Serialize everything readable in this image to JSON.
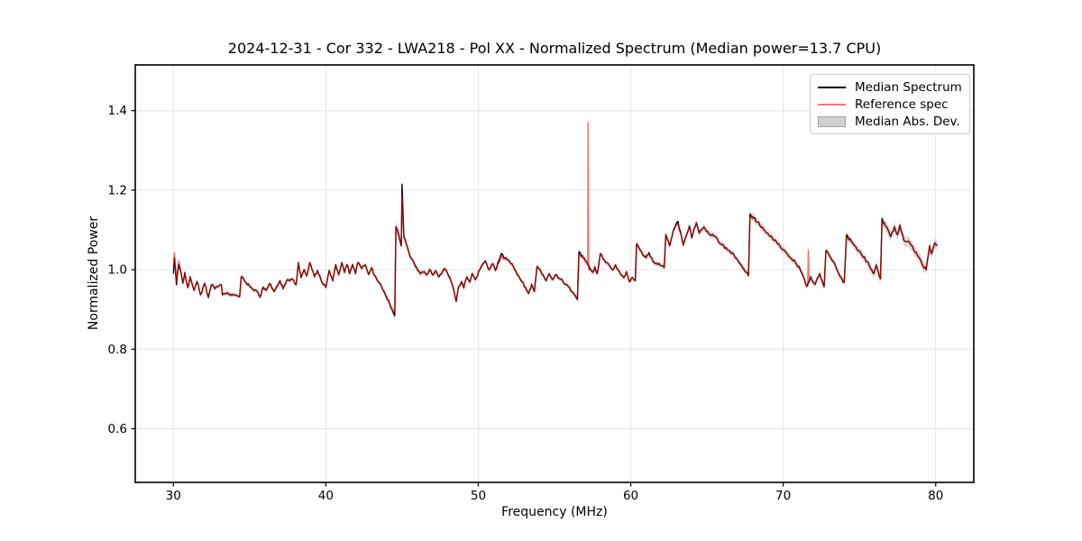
{
  "chart_data": {
    "type": "line",
    "title": "2024-12-31 - Cor 332 - LWA218 - Pol XX - Normalized Spectrum (Median power=13.7 CPU)",
    "xlabel": "Frequency (MHz)",
    "ylabel": "Normalized Power",
    "xlim": [
      27.5,
      82.5
    ],
    "ylim": [
      0.465,
      1.515
    ],
    "xticks": [
      30,
      40,
      50,
      60,
      70,
      80
    ],
    "yticks": [
      0.6,
      0.8,
      1.0,
      1.2,
      1.4
    ],
    "grid": true,
    "grid_color": "#e6e6e6",
    "legend_position": "upper right",
    "noise_amplitude": 0.0035,
    "series": [
      {
        "name": "Median Spectrum",
        "kind": "line",
        "color": "#000000",
        "opacity": 1.0,
        "points": [
          [
            30.0,
            0.99
          ],
          [
            30.07,
            1.03
          ],
          [
            30.2,
            0.962
          ],
          [
            30.35,
            1.013
          ],
          [
            30.5,
            0.993
          ],
          [
            30.62,
            0.966
          ],
          [
            30.75,
            0.993
          ],
          [
            30.95,
            0.955
          ],
          [
            31.1,
            0.982
          ],
          [
            31.35,
            0.948
          ],
          [
            31.55,
            0.97
          ],
          [
            31.78,
            0.937
          ],
          [
            32.05,
            0.966
          ],
          [
            32.3,
            0.93
          ],
          [
            32.5,
            0.962
          ],
          [
            32.72,
            0.952
          ],
          [
            32.95,
            0.958
          ],
          [
            33.15,
            0.962
          ],
          [
            33.22,
            0.937
          ],
          [
            33.6,
            0.94
          ],
          [
            34.0,
            0.937
          ],
          [
            34.35,
            0.932
          ],
          [
            34.45,
            0.982
          ],
          [
            34.75,
            0.968
          ],
          [
            35.1,
            0.955
          ],
          [
            35.45,
            0.947
          ],
          [
            35.68,
            0.931
          ],
          [
            35.9,
            0.956
          ],
          [
            36.1,
            0.948
          ],
          [
            36.3,
            0.965
          ],
          [
            36.62,
            0.945
          ],
          [
            37.0,
            0.972
          ],
          [
            37.2,
            0.952
          ],
          [
            37.45,
            0.974
          ],
          [
            37.8,
            0.976
          ],
          [
            38.05,
            0.962
          ],
          [
            38.2,
            1.018
          ],
          [
            38.38,
            0.98
          ],
          [
            38.58,
            1.0
          ],
          [
            38.75,
            0.984
          ],
          [
            38.95,
            1.018
          ],
          [
            39.25,
            0.982
          ],
          [
            39.45,
            0.998
          ],
          [
            39.75,
            0.968
          ],
          [
            40.0,
            0.955
          ],
          [
            40.22,
            0.998
          ],
          [
            40.45,
            0.972
          ],
          [
            40.65,
            1.013
          ],
          [
            40.85,
            0.987
          ],
          [
            41.05,
            1.018
          ],
          [
            41.22,
            0.993
          ],
          [
            41.4,
            1.013
          ],
          [
            41.55,
            0.99
          ],
          [
            41.75,
            1.013
          ],
          [
            41.95,
            0.99
          ],
          [
            42.1,
            1.018
          ],
          [
            42.35,
            1.003
          ],
          [
            42.6,
            1.012
          ],
          [
            42.8,
            0.988
          ],
          [
            43.0,
            1.005
          ],
          [
            43.2,
            0.985
          ],
          [
            43.5,
            0.967
          ],
          [
            43.8,
            0.946
          ],
          [
            44.1,
            0.923
          ],
          [
            44.35,
            0.9
          ],
          [
            44.52,
            0.884
          ],
          [
            44.6,
            1.108
          ],
          [
            44.8,
            1.085
          ],
          [
            44.95,
            1.06
          ],
          [
            45.0,
            1.215
          ],
          [
            45.12,
            1.082
          ],
          [
            45.3,
            1.062
          ],
          [
            45.55,
            1.03
          ],
          [
            45.8,
            1.016
          ],
          [
            46.0,
            1.0
          ],
          [
            46.2,
            0.99
          ],
          [
            46.4,
            0.994
          ],
          [
            46.6,
            0.987
          ],
          [
            46.8,
            1.0
          ],
          [
            47.0,
            0.987
          ],
          [
            47.2,
            0.997
          ],
          [
            47.42,
            0.982
          ],
          [
            47.6,
            0.99
          ],
          [
            47.75,
            1.002
          ],
          [
            48.0,
            0.99
          ],
          [
            48.2,
            0.972
          ],
          [
            48.4,
            0.948
          ],
          [
            48.55,
            0.92
          ],
          [
            48.7,
            0.957
          ],
          [
            48.9,
            0.97
          ],
          [
            49.05,
            0.954
          ],
          [
            49.25,
            0.982
          ],
          [
            49.45,
            0.969
          ],
          [
            49.6,
            0.99
          ],
          [
            49.8,
            0.975
          ],
          [
            50.1,
            1.0
          ],
          [
            50.45,
            1.022
          ],
          [
            50.7,
            1.0
          ],
          [
            50.95,
            1.015
          ],
          [
            51.12,
            0.998
          ],
          [
            51.5,
            1.04
          ],
          [
            51.9,
            1.025
          ],
          [
            52.3,
            1.008
          ],
          [
            52.7,
            0.98
          ],
          [
            53.1,
            0.955
          ],
          [
            53.3,
            0.94
          ],
          [
            53.5,
            0.963
          ],
          [
            53.68,
            0.945
          ],
          [
            53.85,
            1.008
          ],
          [
            54.25,
            0.987
          ],
          [
            54.45,
            0.972
          ],
          [
            54.65,
            0.99
          ],
          [
            54.85,
            0.975
          ],
          [
            55.05,
            0.987
          ],
          [
            55.4,
            0.976
          ],
          [
            55.9,
            0.958
          ],
          [
            56.3,
            0.938
          ],
          [
            56.5,
            0.925
          ],
          [
            56.6,
            1.045
          ],
          [
            56.9,
            1.028
          ],
          [
            57.1,
            1.02
          ],
          [
            57.2,
            1.013
          ],
          [
            57.35,
            1.0
          ],
          [
            57.5,
            0.993
          ],
          [
            57.65,
            1.007
          ],
          [
            57.8,
            0.99
          ],
          [
            58.0,
            1.04
          ],
          [
            58.35,
            1.018
          ],
          [
            58.6,
            1.01
          ],
          [
            58.8,
            1.0
          ],
          [
            59.0,
            1.012
          ],
          [
            59.35,
            0.987
          ],
          [
            59.55,
            0.98
          ],
          [
            59.72,
            0.995
          ],
          [
            59.9,
            0.97
          ],
          [
            60.1,
            0.98
          ],
          [
            60.3,
            0.972
          ],
          [
            60.38,
            1.065
          ],
          [
            60.6,
            1.05
          ],
          [
            60.8,
            1.036
          ],
          [
            61.0,
            1.03
          ],
          [
            61.2,
            1.043
          ],
          [
            61.45,
            1.02
          ],
          [
            61.7,
            1.016
          ],
          [
            62.0,
            1.01
          ],
          [
            62.2,
            1.005
          ],
          [
            62.3,
            1.088
          ],
          [
            62.55,
            1.06
          ],
          [
            62.8,
            1.1
          ],
          [
            63.1,
            1.121
          ],
          [
            63.45,
            1.062
          ],
          [
            63.85,
            1.11
          ],
          [
            64.0,
            1.08
          ],
          [
            64.3,
            1.118
          ],
          [
            64.5,
            1.092
          ],
          [
            64.8,
            1.107
          ],
          [
            65.2,
            1.088
          ],
          [
            65.6,
            1.082
          ],
          [
            65.9,
            1.065
          ],
          [
            66.5,
            1.047
          ],
          [
            67.0,
            1.025
          ],
          [
            67.4,
            1.003
          ],
          [
            67.72,
            0.985
          ],
          [
            67.82,
            1.14
          ],
          [
            68.3,
            1.12
          ],
          [
            68.8,
            1.098
          ],
          [
            69.3,
            1.078
          ],
          [
            69.8,
            1.058
          ],
          [
            70.3,
            1.038
          ],
          [
            70.8,
            1.018
          ],
          [
            71.1,
            1.002
          ],
          [
            71.4,
            0.975
          ],
          [
            71.55,
            0.958
          ],
          [
            71.8,
            0.982
          ],
          [
            72.1,
            0.963
          ],
          [
            72.4,
            0.99
          ],
          [
            72.68,
            0.957
          ],
          [
            72.8,
            1.048
          ],
          [
            73.3,
            1.02
          ],
          [
            73.7,
            0.985
          ],
          [
            74.0,
            0.968
          ],
          [
            74.15,
            1.088
          ],
          [
            74.6,
            1.064
          ],
          [
            75.0,
            1.047
          ],
          [
            75.5,
            1.02
          ],
          [
            75.8,
            1.0
          ],
          [
            75.95,
            0.99
          ],
          [
            76.1,
            1.012
          ],
          [
            76.38,
            0.977
          ],
          [
            76.48,
            1.128
          ],
          [
            76.7,
            1.11
          ],
          [
            76.9,
            1.098
          ],
          [
            77.05,
            1.083
          ],
          [
            77.3,
            1.108
          ],
          [
            77.5,
            1.088
          ],
          [
            77.65,
            1.112
          ],
          [
            77.9,
            1.075
          ],
          [
            78.3,
            1.067
          ],
          [
            78.8,
            1.036
          ],
          [
            79.1,
            1.015
          ],
          [
            79.38,
            1.0
          ],
          [
            79.6,
            1.06
          ],
          [
            79.72,
            1.04
          ],
          [
            79.95,
            1.067
          ],
          [
            80.1,
            1.06
          ]
        ]
      },
      {
        "name": "Reference spec",
        "kind": "line",
        "color": "#ff0000",
        "opacity": 0.55,
        "base": "Median Spectrum",
        "override_points": [
          [
            30.0,
            1.005
          ],
          [
            30.07,
            1.042
          ],
          [
            30.2,
            0.968
          ],
          [
            30.35,
            1.022
          ],
          [
            44.52,
            0.892
          ],
          [
            45.0,
            1.19
          ],
          [
            51.5,
            1.031
          ],
          [
            56.6,
            1.038
          ],
          [
            57.17,
            1.01
          ],
          [
            57.2,
            1.37
          ],
          [
            57.24,
            1.0
          ],
          [
            63.1,
            1.114
          ],
          [
            67.82,
            1.134
          ],
          [
            71.6,
            0.96
          ],
          [
            71.65,
            1.05
          ],
          [
            71.7,
            0.972
          ],
          [
            74.15,
            1.082
          ],
          [
            76.48,
            1.121
          ]
        ]
      },
      {
        "name": "Median Abs. Dev.",
        "kind": "band",
        "color": "#8a8a8a",
        "opacity": 0.32,
        "half_width": [
          [
            30,
            0.007
          ],
          [
            33,
            0.006
          ],
          [
            36,
            0.006
          ],
          [
            40,
            0.005
          ],
          [
            43.5,
            0.006
          ],
          [
            44.5,
            0.012
          ],
          [
            45.0,
            0.016
          ],
          [
            45.3,
            0.008
          ],
          [
            48,
            0.006
          ],
          [
            52,
            0.006
          ],
          [
            56,
            0.006
          ],
          [
            58,
            0.006
          ],
          [
            60,
            0.006
          ],
          [
            62,
            0.007
          ],
          [
            63.5,
            0.008
          ],
          [
            65,
            0.008
          ],
          [
            67,
            0.007
          ],
          [
            68,
            0.01
          ],
          [
            69,
            0.009
          ],
          [
            70,
            0.009
          ],
          [
            71.5,
            0.008
          ],
          [
            73,
            0.008
          ],
          [
            74.5,
            0.009
          ],
          [
            76,
            0.01
          ],
          [
            76.6,
            0.014
          ],
          [
            77.5,
            0.013
          ],
          [
            78.5,
            0.013
          ],
          [
            79.5,
            0.012
          ],
          [
            80.1,
            0.012
          ]
        ]
      }
    ]
  }
}
